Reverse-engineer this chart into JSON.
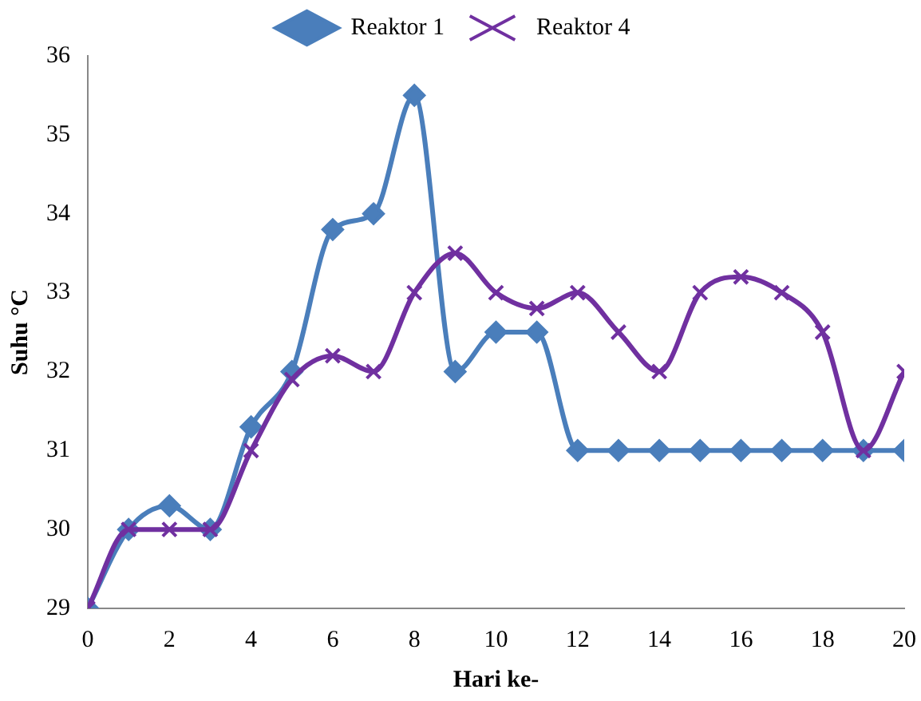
{
  "chart_data": {
    "type": "line",
    "xlabel": "Hari ke-",
    "ylabel": "Suhu °C",
    "x": [
      0,
      1,
      2,
      3,
      4,
      5,
      6,
      7,
      8,
      9,
      10,
      11,
      12,
      13,
      14,
      15,
      16,
      17,
      18,
      19,
      20
    ],
    "series": [
      {
        "name": "Reaktor 1",
        "color": "#4a7ebb",
        "marker": "diamond",
        "values": [
          29,
          30,
          30.3,
          30,
          31.3,
          32,
          33.8,
          34,
          35.5,
          32,
          32.5,
          32.5,
          31,
          31,
          31,
          31,
          31,
          31,
          31,
          31,
          31
        ]
      },
      {
        "name": "Reaktor 4",
        "color": "#7030a0",
        "marker": "cross",
        "values": [
          29,
          30,
          30,
          30,
          31,
          31.9,
          32.2,
          32,
          33,
          33.5,
          33,
          32.8,
          33,
          32.5,
          32,
          33,
          33.2,
          33,
          32.5,
          31,
          32
        ]
      }
    ],
    "xlim": [
      0,
      20
    ],
    "xticks": [
      0,
      2,
      4,
      6,
      8,
      10,
      12,
      14,
      16,
      18,
      20
    ],
    "ylim": [
      29,
      36
    ],
    "yticks": [
      29,
      30,
      31,
      32,
      33,
      34,
      35,
      36
    ],
    "grid": false,
    "legend": "top"
  }
}
